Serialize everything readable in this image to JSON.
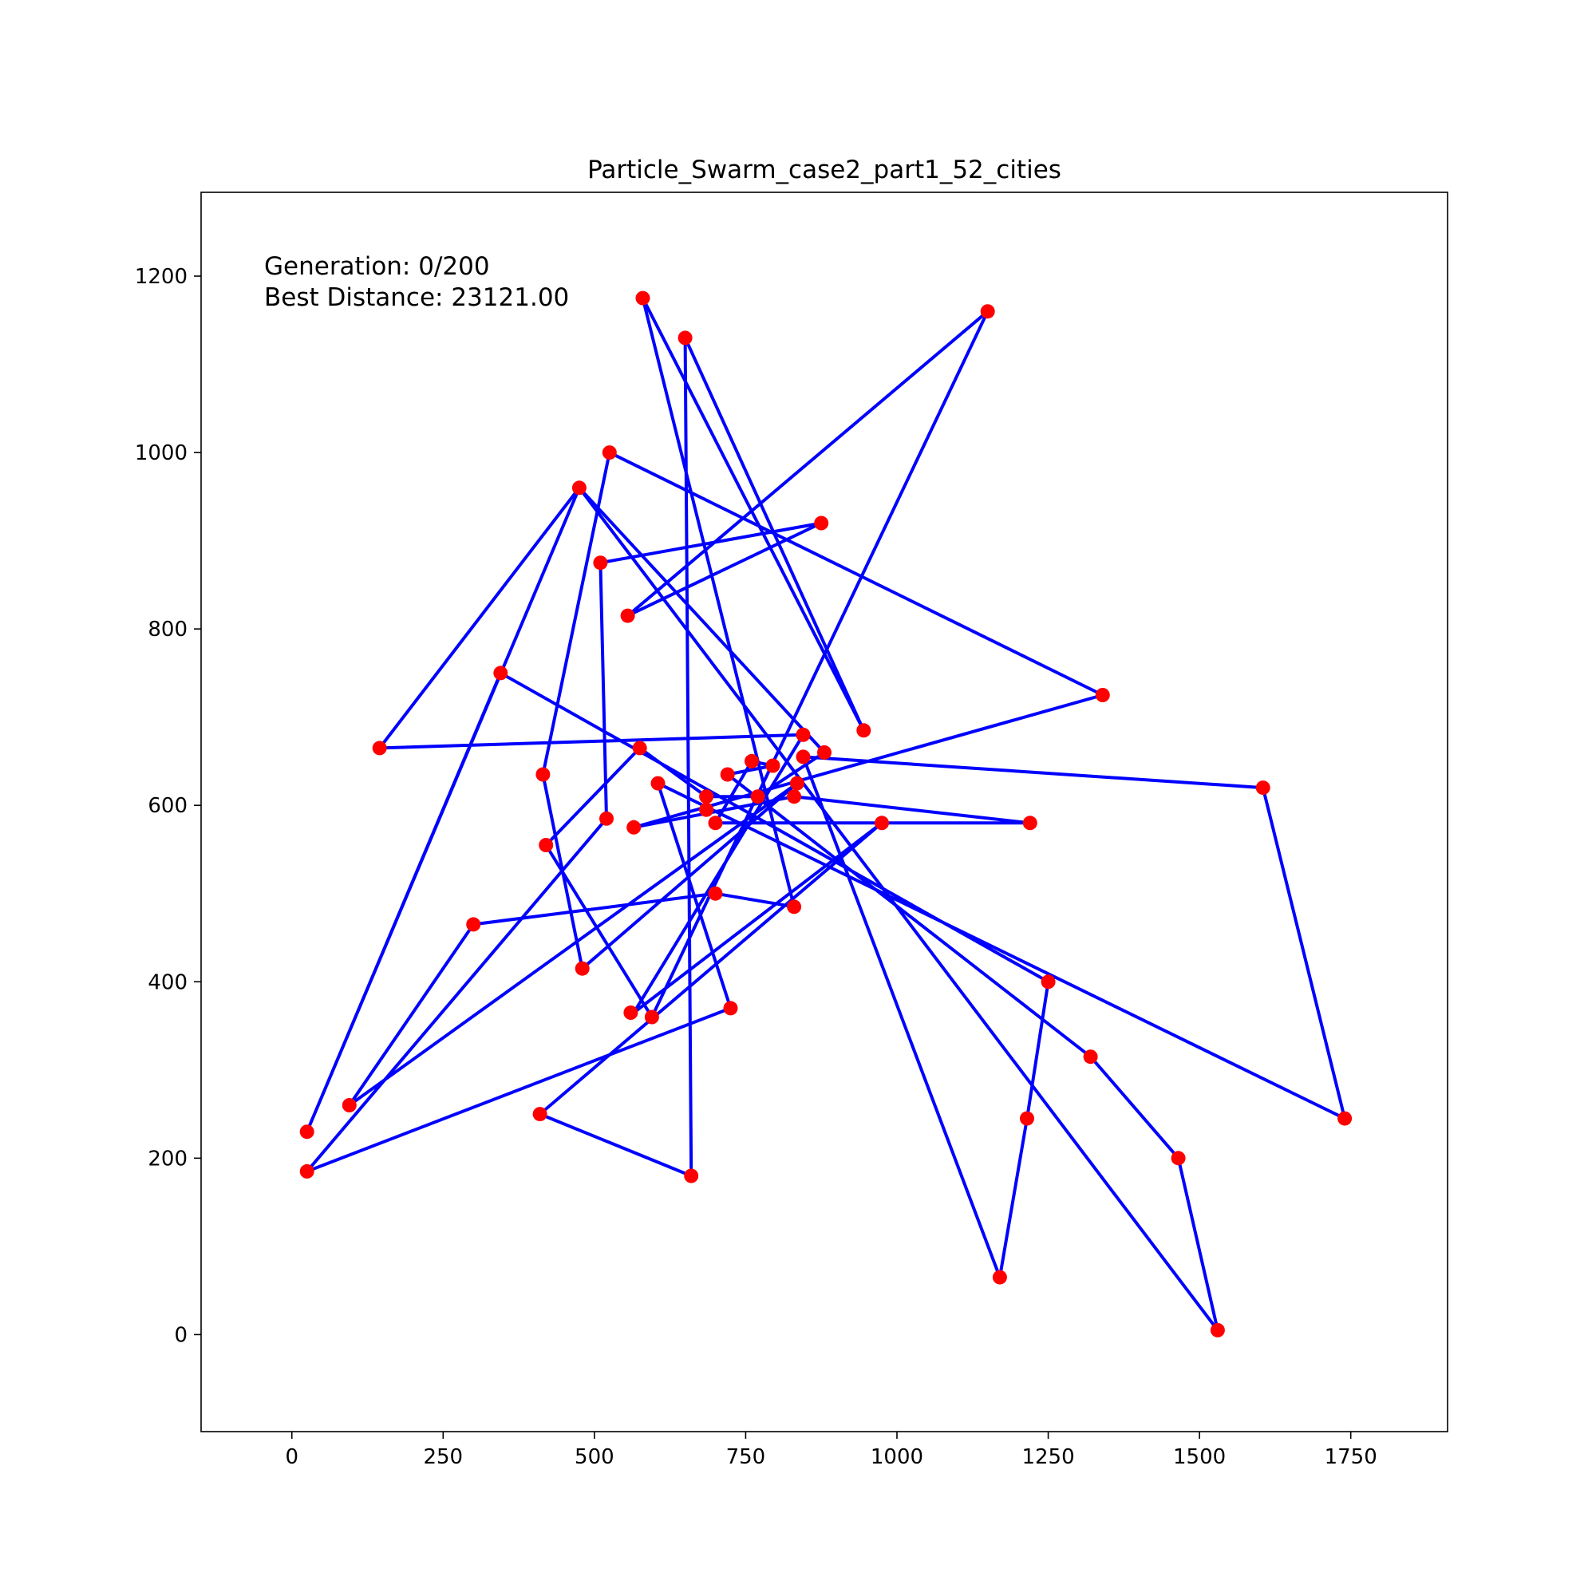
{
  "chart_data": {
    "type": "line",
    "title": "Particle_Swarm_case2_part1_52_cities",
    "xlabel": "",
    "ylabel": "",
    "xlim": [
      -150,
      1910
    ],
    "ylim": [
      -110,
      1295
    ],
    "xticks": [
      0,
      250,
      500,
      750,
      1000,
      1250,
      1500,
      1750
    ],
    "yticks": [
      0,
      200,
      400,
      600,
      800,
      1000,
      1200
    ],
    "grid": false,
    "legend": "none",
    "annotations": [
      "Generation: 0/200",
      "Best Distance: 23121.00"
    ],
    "colors": {
      "route": "#0000ff",
      "city": "#ff0000",
      "axes": "#000000"
    },
    "route": [
      [
        300,
        465
      ],
      [
        700,
        500
      ],
      [
        830,
        485
      ],
      [
        580,
        1175
      ],
      [
        945,
        685
      ],
      [
        650,
        1130
      ],
      [
        660,
        180
      ],
      [
        410,
        250
      ],
      [
        975,
        580
      ],
      [
        565,
        365
      ],
      [
        845,
        680
      ],
      [
        145,
        665
      ],
      [
        475,
        960
      ],
      [
        25,
        230
      ],
      [
        345,
        750
      ],
      [
        1250,
        400
      ],
      [
        1215,
        245
      ],
      [
        1170,
        65
      ],
      [
        845,
        655
      ],
      [
        1605,
        620
      ],
      [
        1740,
        245
      ],
      [
        605,
        625
      ],
      [
        725,
        370
      ],
      [
        25,
        185
      ],
      [
        520,
        585
      ],
      [
        510,
        875
      ],
      [
        875,
        920
      ],
      [
        555,
        815
      ],
      [
        1150,
        1160
      ],
      [
        595,
        360
      ],
      [
        420,
        555
      ],
      [
        575,
        665
      ],
      [
        685,
        610
      ],
      [
        770,
        610
      ],
      [
        880,
        660
      ],
      [
        475,
        960
      ],
      [
        1530,
        5
      ],
      [
        1465,
        200
      ],
      [
        1320,
        315
      ],
      [
        720,
        635
      ],
      [
        795,
        645
      ],
      [
        760,
        650
      ],
      [
        700,
        580
      ],
      [
        1220,
        580
      ],
      [
        830,
        610
      ],
      [
        565,
        575
      ],
      [
        1340,
        725
      ],
      [
        525,
        1000
      ],
      [
        415,
        635
      ],
      [
        480,
        415
      ],
      [
        835,
        625
      ],
      [
        95,
        260
      ]
    ],
    "cities": [
      [
        565,
        575
      ],
      [
        25,
        185
      ],
      [
        345,
        750
      ],
      [
        945,
        685
      ],
      [
        845,
        655
      ],
      [
        880,
        660
      ],
      [
        25,
        230
      ],
      [
        525,
        1000
      ],
      [
        580,
        1175
      ],
      [
        650,
        1130
      ],
      [
        1605,
        620
      ],
      [
        1220,
        580
      ],
      [
        1465,
        200
      ],
      [
        1530,
        5
      ],
      [
        845,
        680
      ],
      [
        725,
        370
      ],
      [
        145,
        665
      ],
      [
        415,
        635
      ],
      [
        510,
        875
      ],
      [
        560,
        365
      ],
      [
        300,
        465
      ],
      [
        520,
        585
      ],
      [
        480,
        415
      ],
      [
        835,
        625
      ],
      [
        975,
        580
      ],
      [
        1215,
        245
      ],
      [
        1320,
        315
      ],
      [
        1250,
        400
      ],
      [
        660,
        180
      ],
      [
        410,
        250
      ],
      [
        420,
        555
      ],
      [
        575,
        665
      ],
      [
        1150,
        1160
      ],
      [
        700,
        580
      ],
      [
        685,
        595
      ],
      [
        685,
        610
      ],
      [
        770,
        610
      ],
      [
        795,
        645
      ],
      [
        720,
        635
      ],
      [
        760,
        650
      ],
      [
        475,
        960
      ],
      [
        95,
        260
      ],
      [
        875,
        920
      ],
      [
        700,
        500
      ],
      [
        555,
        815
      ],
      [
        830,
        485
      ],
      [
        1170,
        65
      ],
      [
        830,
        610
      ],
      [
        605,
        625
      ],
      [
        595,
        360
      ],
      [
        1340,
        725
      ],
      [
        1740,
        245
      ]
    ]
  }
}
